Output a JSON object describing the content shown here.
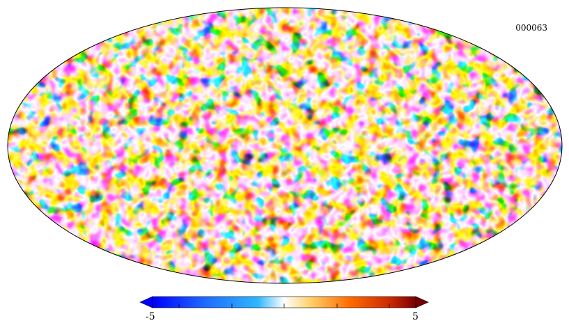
{
  "map_id": "000063",
  "colorbar": {
    "min_label": "-5",
    "max_label": "5",
    "min": -5,
    "max": 5,
    "colormap": [
      "#0000ff",
      "#1e6bff",
      "#2fb6ff",
      "#ffffff",
      "#ffd06a",
      "#ff6a00",
      "#cc2a00",
      "#7a0000"
    ]
  },
  "projection": "mollweide"
}
